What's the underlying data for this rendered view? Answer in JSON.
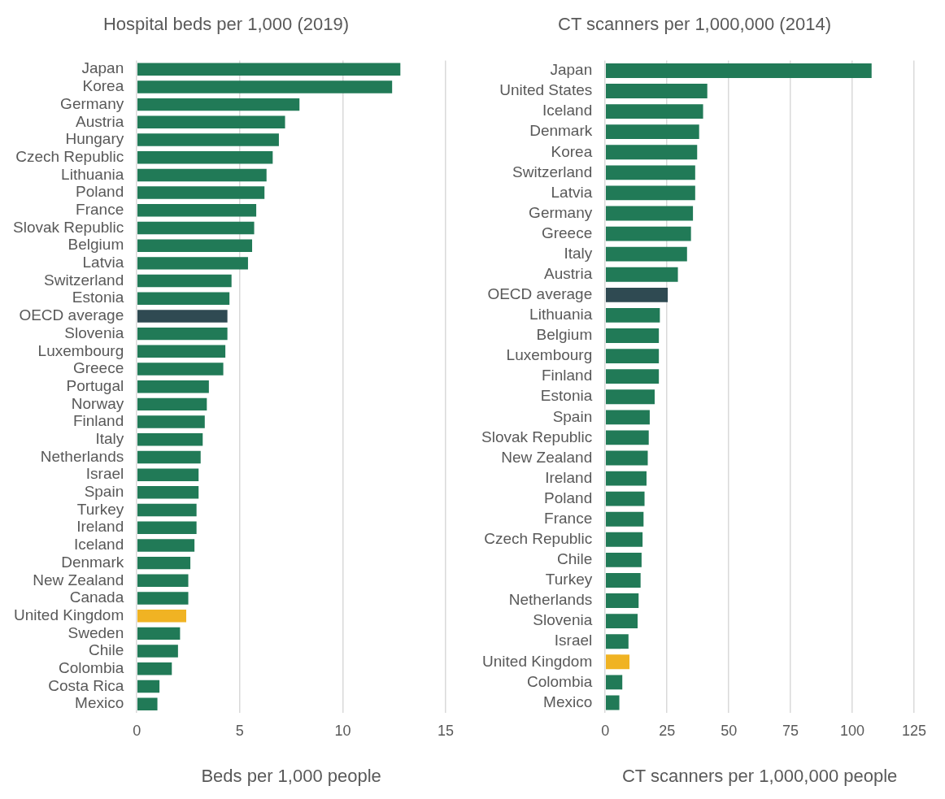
{
  "chart_data": [
    {
      "type": "bar",
      "orientation": "horizontal",
      "title": "Hospital beds per 1,000 (2019)",
      "xlabel": "Beds per 1,000 people",
      "categories": [
        "Japan",
        "Korea",
        "Germany",
        "Austria",
        "Hungary",
        "Czech Republic",
        "Lithuania",
        "Poland",
        "France",
        "Slovak Republic",
        "Belgium",
        "Latvia",
        "Switzerland",
        "Estonia",
        "OECD average",
        "Slovenia",
        "Luxembourg",
        "Greece",
        "Portugal",
        "Norway",
        "Finland",
        "Italy",
        "Netherlands",
        "Israel",
        "Spain",
        "Turkey",
        "Ireland",
        "Iceland",
        "Denmark",
        "New Zealand",
        "Canada",
        "United Kingdom",
        "Sweden",
        "Chile",
        "Colombia",
        "Costa Rica",
        "Mexico"
      ],
      "values": [
        12.8,
        12.4,
        7.9,
        7.2,
        6.9,
        6.6,
        6.3,
        6.2,
        5.8,
        5.7,
        5.6,
        5.4,
        4.6,
        4.5,
        4.4,
        4.4,
        4.3,
        4.2,
        3.5,
        3.4,
        3.3,
        3.2,
        3.1,
        3.0,
        3.0,
        2.9,
        2.9,
        2.8,
        2.6,
        2.5,
        2.5,
        2.4,
        2.1,
        2.0,
        1.7,
        1.1,
        1.0
      ],
      "colors": [
        "#217a57",
        "#217a57",
        "#217a57",
        "#217a57",
        "#217a57",
        "#217a57",
        "#217a57",
        "#217a57",
        "#217a57",
        "#217a57",
        "#217a57",
        "#217a57",
        "#217a57",
        "#217a57",
        "#2f4a52",
        "#217a57",
        "#217a57",
        "#217a57",
        "#217a57",
        "#217a57",
        "#217a57",
        "#217a57",
        "#217a57",
        "#217a57",
        "#217a57",
        "#217a57",
        "#217a57",
        "#217a57",
        "#217a57",
        "#217a57",
        "#217a57",
        "#f0b323",
        "#217a57",
        "#217a57",
        "#217a57",
        "#217a57",
        "#217a57"
      ],
      "xlim": [
        0,
        15
      ],
      "xticks": [
        0,
        5,
        10,
        15
      ],
      "grid": "x"
    },
    {
      "type": "bar",
      "orientation": "horizontal",
      "title": "CT scanners per 1,000,000 (2014)",
      "xlabel": "CT scanners per 1,000,000 people",
      "categories": [
        "Japan",
        "United States",
        "Iceland",
        "Denmark",
        "Korea",
        "Switzerland",
        "Latvia",
        "Germany",
        "Greece",
        "Italy",
        "Austria",
        "OECD average",
        "Lithuania",
        "Belgium",
        "Luxembourg",
        "Finland",
        "Estonia",
        "Spain",
        "Slovak Republic",
        "New Zealand",
        "Ireland",
        "Poland",
        "France",
        "Czech Republic",
        "Chile",
        "Turkey",
        "Netherlands",
        "Slovenia",
        "Israel",
        "United Kingdom",
        "Colombia",
        "Mexico"
      ],
      "values": [
        107.8,
        41.3,
        39.6,
        38,
        37.2,
        36.4,
        36.4,
        35.5,
        34.7,
        33.1,
        29.4,
        25.3,
        22.1,
        21.7,
        21.7,
        21.7,
        20,
        18,
        17.6,
        17.2,
        16.7,
        15.9,
        15.5,
        15.1,
        14.7,
        14.3,
        13.5,
        13.1,
        9.4,
        9.8,
        6.9,
        5.7
      ],
      "colors": [
        "#217a57",
        "#217a57",
        "#217a57",
        "#217a57",
        "#217a57",
        "#217a57",
        "#217a57",
        "#217a57",
        "#217a57",
        "#217a57",
        "#217a57",
        "#2f4a52",
        "#217a57",
        "#217a57",
        "#217a57",
        "#217a57",
        "#217a57",
        "#217a57",
        "#217a57",
        "#217a57",
        "#217a57",
        "#217a57",
        "#217a57",
        "#217a57",
        "#217a57",
        "#217a57",
        "#217a57",
        "#217a57",
        "#217a57",
        "#f0b323",
        "#217a57",
        "#217a57"
      ],
      "xlim": [
        0,
        125
      ],
      "xticks": [
        0,
        25,
        50,
        75,
        100,
        125
      ],
      "grid": "x"
    }
  ]
}
